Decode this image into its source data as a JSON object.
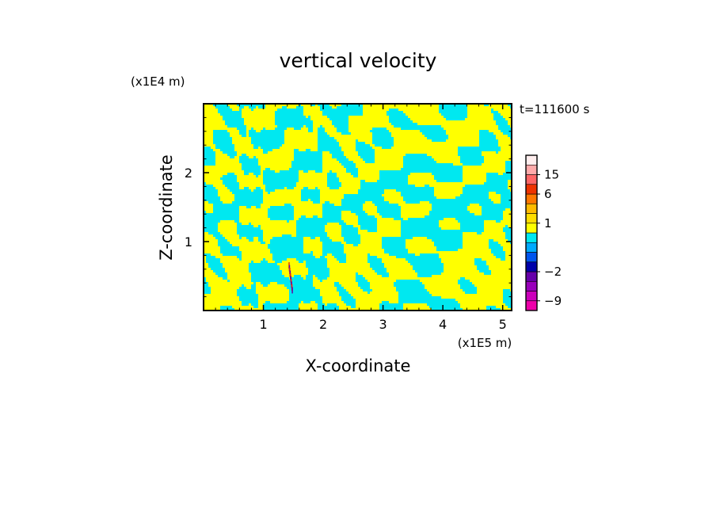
{
  "chart_data": {
    "type": "heatmap",
    "title": "vertical velocity",
    "xlabel": "X-coordinate",
    "ylabel": "Z-coordinate",
    "x_unit": "(x1E5 m)",
    "y_unit": "(x1E4 m)",
    "time_label": "t=111600 s",
    "xlim": [
      0,
      5.15
    ],
    "ylim": [
      0,
      3.0
    ],
    "x_ticks": [
      1,
      2,
      3,
      4,
      5
    ],
    "y_ticks": [
      1,
      2
    ],
    "x_tick_labels": [
      "1",
      "2",
      "3",
      "4",
      "5"
    ],
    "y_tick_labels": [
      "1",
      "2"
    ],
    "colorbar": {
      "levels": [
        -12,
        -9,
        -6,
        -4,
        -2,
        -1,
        -0.5,
        0,
        0.5,
        1,
        2,
        4,
        6,
        10,
        15,
        20,
        25
      ],
      "colors": [
        "#ee00aa",
        "#cc00bb",
        "#9900bb",
        "#6600aa",
        "#0000aa",
        "#0055ee",
        "#00aaff",
        "#00e8f0",
        "#ffff00",
        "#ffdd00",
        "#ffbb00",
        "#ff7700",
        "#ee3300",
        "#ff6666",
        "#ffaaaa",
        "#ffeeee"
      ],
      "tick_values": [
        15,
        6,
        1,
        -2,
        -9
      ],
      "tick_labels": [
        "15",
        "6",
        "1",
        "−2",
        "−9"
      ]
    },
    "field_palette": {
      "positive": "#ffff00",
      "negative": "#00e8f0",
      "strong_negative": "#6600aa",
      "strong_positive": "#ee3300"
    }
  }
}
